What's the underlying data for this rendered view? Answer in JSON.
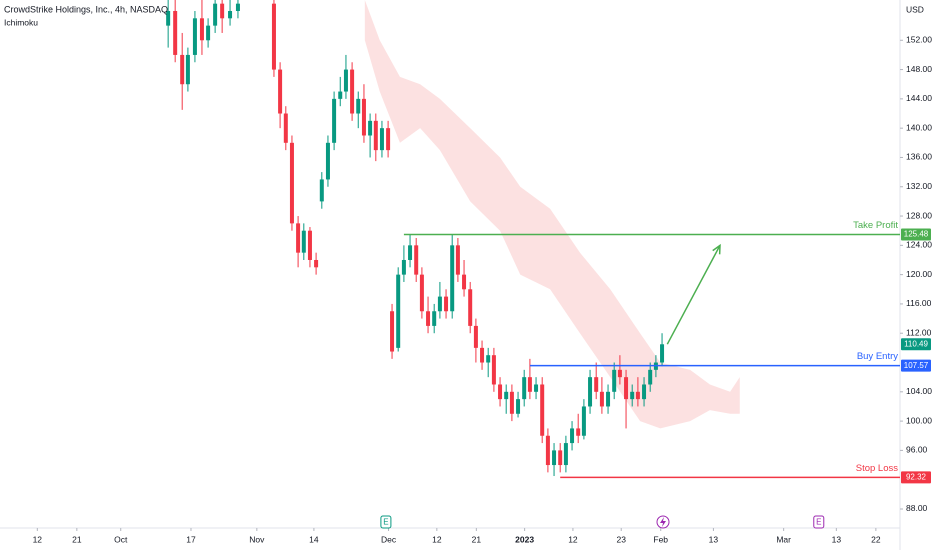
{
  "chart_data": {
    "type": "candlestick",
    "title": "CrowdStrike Holdings, Inc., 4h, NASDAQ",
    "subtitle": "Ichimoku",
    "currency": "USD",
    "xlim": [
      2.5,
      207.5
    ],
    "ylim": [
      82.4,
      157.5
    ],
    "up_color": "#089981",
    "down_color": "#f23645",
    "yticks": [
      {
        "value": 88,
        "label": "88.00"
      },
      {
        "value": 96,
        "label": "96.00"
      },
      {
        "value": 100,
        "label": "100.00"
      },
      {
        "value": 104,
        "label": "104.00"
      },
      {
        "value": 112,
        "label": "112.00"
      },
      {
        "value": 116,
        "label": "116.00"
      },
      {
        "value": 120,
        "label": "120.00"
      },
      {
        "value": 124,
        "label": "124.00"
      },
      {
        "value": 128,
        "label": "128.00"
      },
      {
        "value": 132,
        "label": "132.00"
      },
      {
        "value": 136,
        "label": "136.00"
      },
      {
        "value": 140,
        "label": "140.00"
      },
      {
        "value": 144,
        "label": "144.00"
      },
      {
        "value": 148,
        "label": "148.00"
      },
      {
        "value": 152,
        "label": "152.00"
      }
    ],
    "xticks": [
      {
        "value": 11,
        "label": "12"
      },
      {
        "value": 20,
        "label": "21"
      },
      {
        "value": 30,
        "label": "Oct"
      },
      {
        "value": 46,
        "label": "17"
      },
      {
        "value": 61,
        "label": "Nov"
      },
      {
        "value": 74,
        "label": "14"
      },
      {
        "value": 91,
        "label": "Dec"
      },
      {
        "value": 102,
        "label": "12"
      },
      {
        "value": 111,
        "label": "21"
      },
      {
        "value": 122,
        "label": "2023"
      },
      {
        "value": 133,
        "label": "12"
      },
      {
        "value": 144,
        "label": "23"
      },
      {
        "value": 153,
        "label": "Feb"
      },
      {
        "value": 165,
        "label": "13"
      },
      {
        "value": 181,
        "label": "Mar"
      },
      {
        "value": 193,
        "label": "13"
      },
      {
        "value": 202,
        "label": "22"
      }
    ],
    "candles": {
      "x": [
        40.8,
        42.4,
        44.0,
        45.3,
        46.9,
        48.5,
        49.9,
        51.5,
        53.1,
        54.9,
        56.7,
        64.9,
        66.3,
        67.6,
        69.0,
        70.4,
        71.7,
        73.1,
        74.5,
        75.8,
        77.2,
        78.6,
        80.0,
        81.3,
        82.7,
        84.1,
        85.4,
        86.8,
        88.1,
        89.5,
        90.9,
        91.8,
        93.2,
        94.5,
        95.9,
        97.3,
        98.6,
        100.0,
        101.4,
        102.7,
        104.1,
        105.5,
        106.8,
        108.2,
        109.6,
        110.9,
        112.3,
        113.7,
        115.0,
        116.4,
        117.8,
        119.1,
        120.5,
        121.9,
        123.2,
        124.6,
        126.0,
        127.3,
        128.7,
        130.1,
        131.4,
        132.8,
        134.2,
        135.5,
        136.9,
        138.3,
        139.6,
        141.0,
        142.4,
        143.7,
        145.1,
        146.5,
        147.8,
        149.2,
        150.6,
        151.9,
        153.3
      ],
      "open": [
        154,
        156,
        150,
        146,
        150,
        155,
        152,
        154,
        157,
        155,
        156,
        157,
        148,
        142,
        138,
        127,
        123,
        126,
        122,
        130,
        133,
        138,
        144,
        145,
        148,
        142,
        144,
        139,
        141,
        137,
        140,
        115,
        110,
        120,
        122,
        124,
        120,
        115,
        113,
        115,
        117,
        115,
        124,
        120,
        118,
        113,
        110,
        108,
        109,
        105,
        103,
        104,
        101,
        103,
        106,
        104,
        105,
        98,
        94,
        96,
        94,
        97,
        99,
        98,
        102,
        106,
        104,
        102,
        104,
        107,
        106,
        103,
        104,
        103,
        105,
        107,
        108
      ],
      "high": [
        157.5,
        157.5,
        153,
        151,
        156,
        157.5,
        155,
        157.5,
        157.5,
        157.5,
        157.5,
        157.5,
        149,
        143,
        139,
        128,
        127,
        126.5,
        123,
        134,
        139,
        145,
        147,
        150,
        149,
        145,
        146,
        142,
        142,
        141,
        141,
        116,
        121,
        124,
        125.5,
        125,
        121,
        117,
        116,
        119,
        118,
        125.5,
        125,
        122,
        119,
        114,
        111,
        110,
        110,
        106,
        105,
        105,
        104,
        107,
        108.5,
        106,
        106,
        99,
        97,
        97,
        98,
        100,
        101,
        103,
        107,
        108,
        106,
        105,
        108,
        109,
        107,
        105,
        106,
        106,
        108,
        109,
        112
      ],
      "low": [
        151,
        149,
        142.5,
        145,
        149,
        150,
        151,
        153,
        153,
        154,
        155,
        147,
        140,
        137,
        126,
        121,
        122,
        121,
        120,
        129,
        132,
        137,
        143,
        144,
        141,
        140,
        138,
        136,
        135.5,
        136,
        136,
        108.5,
        109.5,
        119,
        121,
        119,
        114,
        112,
        112,
        114,
        114,
        114,
        119,
        117,
        112,
        108,
        107,
        106,
        104,
        102,
        101,
        100,
        100.5,
        102,
        103,
        103,
        97,
        93,
        92.5,
        93,
        93,
        96,
        97,
        97.5,
        101,
        103,
        101,
        101,
        103,
        105,
        99,
        102,
        102,
        102,
        104,
        106,
        107.5
      ],
      "close": [
        156,
        150,
        146,
        150,
        155,
        152,
        154,
        157,
        155,
        156,
        157,
        148,
        142,
        138,
        127,
        123,
        126,
        122,
        121,
        133,
        138,
        144,
        145,
        148,
        142,
        144,
        139,
        141,
        137,
        140,
        137,
        109.5,
        120,
        122,
        124,
        120,
        115,
        113,
        115,
        117,
        115,
        124,
        120,
        118,
        113,
        110,
        108,
        109,
        105,
        103,
        104,
        101,
        103,
        106,
        104,
        105,
        98,
        94,
        96,
        94,
        97,
        99,
        98,
        102,
        106,
        104,
        102,
        104,
        107,
        106,
        103,
        104,
        103,
        105,
        107,
        108,
        110.49
      ]
    },
    "cloud": {
      "color": "#fbd9d9",
      "x": [
        85.6,
        89.0,
        93.6,
        98.2,
        102.7,
        109.6,
        116.4,
        121.0,
        127.8,
        134.6,
        141.5,
        148.3,
        152.9,
        159.7,
        164.2,
        168.8,
        171.0
      ],
      "upper": [
        157.5,
        152,
        147,
        146,
        144,
        140,
        136,
        132,
        129,
        123,
        118,
        112,
        108,
        107,
        105,
        104,
        106
      ],
      "lower": [
        152,
        145,
        138,
        140,
        137,
        130,
        126,
        120,
        118,
        112,
        106,
        100,
        99,
        100,
        101.5,
        101,
        101
      ]
    },
    "levels": [
      {
        "name": "Take Profit",
        "value": 125.48,
        "color": "#4caf50",
        "start": 94.5
      },
      {
        "name": "Buy Entry",
        "value": 107.57,
        "color": "#2962ff",
        "start": 123.2
      },
      {
        "name": "Stop Loss",
        "value": 92.32,
        "color": "#f23645",
        "start": 130.1
      }
    ],
    "last_price": {
      "value": 110.49,
      "color": "#089981"
    },
    "arrow": {
      "x": [
        154.5,
        166.5
      ],
      "y": [
        110.5,
        124.0
      ],
      "color": "#4caf50"
    },
    "events": [
      {
        "x": 90.4,
        "label": "E",
        "color": "#089981"
      },
      {
        "x": 189.0,
        "label": "E",
        "color": "#9c27b0"
      }
    ]
  }
}
